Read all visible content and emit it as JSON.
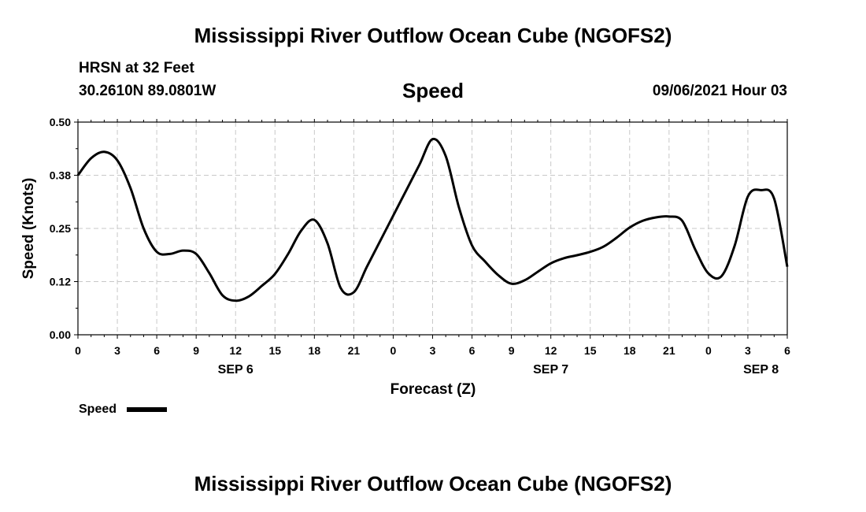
{
  "header": {
    "title": "Mississippi River Outflow Ocean Cube (NGOFS2)",
    "station": "HRSN at 32 Feet",
    "coords": "30.2610N  89.0801W",
    "subtitle": "Speed",
    "timestamp": "09/06/2021 Hour 03"
  },
  "footer": {
    "title": "Mississippi River Outflow Ocean Cube (NGOFS2)"
  },
  "chart_data": {
    "type": "line",
    "xlabel": "Forecast (Z)",
    "ylabel": "Speed (Knots)",
    "ylim": [
      0,
      0.5
    ],
    "xlim": [
      0,
      54
    ],
    "y_ticks": [
      "0.00",
      "0.12",
      "0.25",
      "0.38",
      "0.50"
    ],
    "y_tick_values": [
      0,
      0.125,
      0.25,
      0.375,
      0.5
    ],
    "x_tick_labels": [
      "0",
      "3",
      "6",
      "9",
      "12",
      "15",
      "18",
      "21",
      "0",
      "3",
      "6",
      "9",
      "12",
      "15",
      "18",
      "21",
      "0",
      "3",
      "6"
    ],
    "date_labels": [
      {
        "label": "SEP 6",
        "hour": 12
      },
      {
        "label": "SEP 7",
        "hour": 36
      },
      {
        "label": "SEP 8",
        "hour": 52
      }
    ],
    "grid": true,
    "legend": {
      "label": "Speed",
      "position": "bottom-left"
    },
    "series": [
      {
        "name": "Speed",
        "color": "#000000",
        "x": [
          0,
          1,
          2,
          3,
          4,
          5,
          6,
          7,
          8,
          9,
          10,
          11,
          12,
          13,
          14,
          15,
          16,
          17,
          18,
          19,
          20,
          21,
          22,
          23,
          24,
          25,
          26,
          27,
          28,
          29,
          30,
          31,
          32,
          33,
          34,
          35,
          36,
          37,
          38,
          39,
          40,
          41,
          42,
          43,
          44,
          45,
          46,
          47,
          48,
          49,
          50,
          51,
          52,
          53,
          54
        ],
        "y": [
          0.375,
          0.415,
          0.43,
          0.41,
          0.345,
          0.25,
          0.195,
          0.19,
          0.198,
          0.19,
          0.145,
          0.093,
          0.08,
          0.09,
          0.115,
          0.143,
          0.19,
          0.245,
          0.27,
          0.215,
          0.11,
          0.1,
          0.16,
          0.22,
          0.28,
          0.34,
          0.4,
          0.46,
          0.42,
          0.3,
          0.21,
          0.172,
          0.14,
          0.12,
          0.128,
          0.148,
          0.168,
          0.18,
          0.187,
          0.195,
          0.207,
          0.228,
          0.252,
          0.268,
          0.276,
          0.278,
          0.268,
          0.2,
          0.144,
          0.138,
          0.21,
          0.325,
          0.34,
          0.32,
          0.16
        ]
      }
    ]
  }
}
